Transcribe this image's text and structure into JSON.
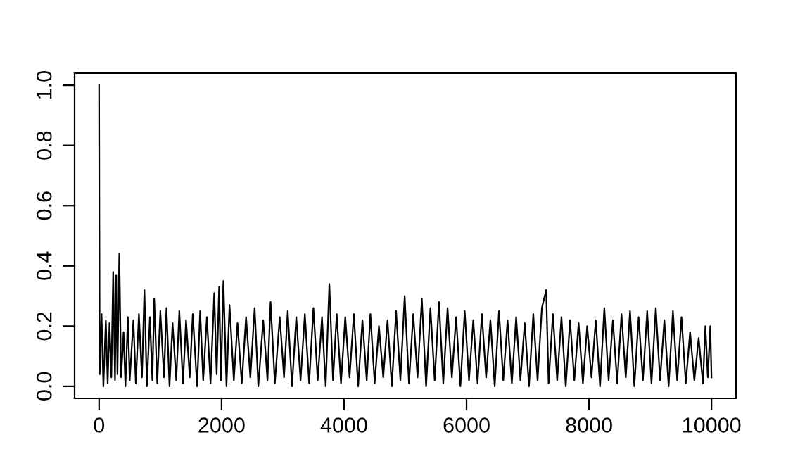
{
  "chart_data": {
    "type": "line",
    "x": [
      0,
      10,
      40,
      70,
      110,
      140,
      170,
      200,
      230,
      260,
      280,
      300,
      330,
      360,
      400,
      430,
      470,
      500,
      560,
      600,
      650,
      700,
      740,
      780,
      830,
      870,
      900,
      950,
      1000,
      1060,
      1100,
      1150,
      1200,
      1260,
      1310,
      1370,
      1420,
      1480,
      1530,
      1600,
      1650,
      1700,
      1760,
      1820,
      1880,
      1920,
      1960,
      1990,
      2030,
      2080,
      2130,
      2200,
      2260,
      2330,
      2400,
      2470,
      2540,
      2600,
      2680,
      2750,
      2800,
      2870,
      2950,
      3020,
      3080,
      3150,
      3220,
      3290,
      3360,
      3430,
      3500,
      3570,
      3640,
      3700,
      3760,
      3820,
      3880,
      3950,
      4020,
      4090,
      4160,
      4230,
      4300,
      4370,
      4430,
      4500,
      4570,
      4640,
      4710,
      4780,
      4850,
      4920,
      4990,
      5060,
      5130,
      5200,
      5270,
      5340,
      5410,
      5480,
      5550,
      5620,
      5690,
      5760,
      5830,
      5900,
      5970,
      6040,
      6110,
      6180,
      6250,
      6320,
      6390,
      6460,
      6530,
      6600,
      6670,
      6740,
      6810,
      6880,
      6950,
      7020,
      7090,
      7160,
      7230,
      7300,
      7340,
      7410,
      7480,
      7550,
      7620,
      7690,
      7760,
      7830,
      7900,
      7970,
      8040,
      8110,
      8180,
      8250,
      8320,
      8390,
      8460,
      8530,
      8600,
      8670,
      8740,
      8810,
      8880,
      8950,
      9020,
      9090,
      9160,
      9230,
      9300,
      9370,
      9440,
      9510,
      9580,
      9650,
      9720,
      9790,
      9860,
      9900,
      9940,
      9980,
      10000
    ],
    "series": [
      {
        "color": "#000000",
        "values": [
          1.0,
          0.04,
          0.24,
          0.0,
          0.22,
          0.01,
          0.21,
          0.03,
          0.38,
          0.02,
          0.37,
          0.04,
          0.44,
          0.03,
          0.18,
          0.0,
          0.23,
          0.02,
          0.22,
          0.01,
          0.24,
          0.03,
          0.32,
          0.0,
          0.23,
          0.02,
          0.29,
          0.01,
          0.25,
          0.03,
          0.26,
          0.0,
          0.21,
          0.02,
          0.25,
          0.01,
          0.22,
          0.03,
          0.24,
          0.0,
          0.25,
          0.02,
          0.23,
          0.01,
          0.31,
          0.04,
          0.33,
          0.02,
          0.35,
          0.0,
          0.27,
          0.02,
          0.21,
          0.01,
          0.23,
          0.03,
          0.26,
          0.0,
          0.22,
          0.02,
          0.28,
          0.01,
          0.23,
          0.03,
          0.25,
          0.0,
          0.23,
          0.02,
          0.24,
          0.01,
          0.26,
          0.02,
          0.23,
          0.0,
          0.34,
          0.02,
          0.24,
          0.01,
          0.23,
          0.03,
          0.24,
          0.0,
          0.22,
          0.02,
          0.24,
          0.01,
          0.2,
          0.03,
          0.22,
          0.0,
          0.25,
          0.02,
          0.3,
          0.01,
          0.24,
          0.03,
          0.29,
          0.0,
          0.26,
          0.02,
          0.28,
          0.01,
          0.26,
          0.03,
          0.23,
          0.0,
          0.25,
          0.02,
          0.22,
          0.01,
          0.24,
          0.03,
          0.22,
          0.0,
          0.25,
          0.02,
          0.22,
          0.01,
          0.23,
          0.02,
          0.21,
          0.0,
          0.24,
          0.02,
          0.26,
          0.32,
          0.01,
          0.24,
          0.02,
          0.23,
          0.0,
          0.22,
          0.02,
          0.21,
          0.01,
          0.2,
          0.03,
          0.22,
          0.0,
          0.26,
          0.02,
          0.22,
          0.01,
          0.24,
          0.03,
          0.25,
          0.0,
          0.23,
          0.02,
          0.25,
          0.01,
          0.26,
          0.02,
          0.22,
          0.0,
          0.25,
          0.02,
          0.23,
          0.01,
          0.18,
          0.02,
          0.16,
          0.01,
          0.2,
          0.03,
          0.2,
          0.03
        ]
      }
    ],
    "xlim": [
      -400,
      10400
    ],
    "xticks": [
      0,
      2000,
      4000,
      6000,
      8000,
      10000
    ],
    "ylim": [
      -0.04,
      1.04
    ],
    "yticks": [
      {
        "value": 0,
        "label": "0.0"
      },
      {
        "value": 0.2,
        "label": "0.2"
      },
      {
        "value": 0.4,
        "label": "0.4"
      },
      {
        "value": 0.6,
        "label": "0.6"
      },
      {
        "value": 0.8,
        "label": "0.8"
      },
      {
        "value": 1.0,
        "label": "1.0"
      }
    ],
    "grid": false,
    "legend": false
  }
}
